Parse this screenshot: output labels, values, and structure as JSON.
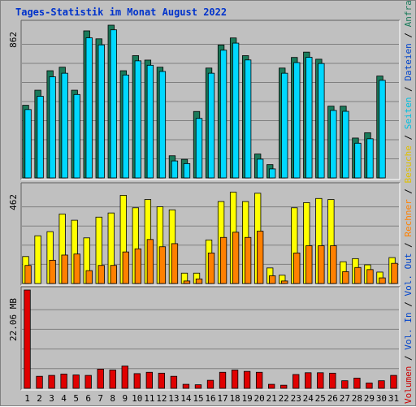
{
  "title": "Tages-Statistik im Monat August 2022",
  "chart_data": [
    {
      "type": "bar",
      "panel": "top",
      "ylabel": "862",
      "ylim": [
        0,
        862
      ],
      "categories": [
        "1",
        "2",
        "3",
        "4",
        "5",
        "6",
        "7",
        "8",
        "9",
        "10",
        "11",
        "12",
        "13",
        "14",
        "15",
        "16",
        "17",
        "18",
        "19",
        "20",
        "21",
        "22",
        "23",
        "24",
        "25",
        "26",
        "27",
        "28",
        "29",
        "30",
        "31"
      ],
      "weekend_days": [
        "6",
        "7",
        "13",
        "14",
        "20",
        "21",
        "27",
        "28"
      ],
      "series": [
        {
          "name": "Anfragen",
          "color": "#1a7a5a",
          "values": [
            410,
            495,
            605,
            625,
            495,
            830,
            785,
            862,
            605,
            690,
            665,
            625,
            125,
            105,
            375,
            620,
            750,
            790,
            690,
            135,
            75,
            620,
            680,
            710,
            670,
            405,
            405,
            225,
            255,
            575,
            0
          ]
        },
        {
          "name": "Dateien",
          "color": "#00d8ff",
          "values": [
            395,
            470,
            580,
            600,
            480,
            800,
            760,
            845,
            590,
            670,
            645,
            610,
            105,
            90,
            345,
            600,
            730,
            770,
            675,
            115,
            60,
            600,
            660,
            690,
            655,
            390,
            385,
            205,
            230,
            560,
            0
          ]
        }
      ]
    },
    {
      "type": "bar",
      "panel": "middle",
      "ylabel": "462",
      "ylim": [
        0,
        462
      ],
      "categories": [
        "1",
        "2",
        "3",
        "4",
        "5",
        "6",
        "7",
        "8",
        "9",
        "10",
        "11",
        "12",
        "13",
        "14",
        "15",
        "16",
        "17",
        "18",
        "19",
        "20",
        "21",
        "22",
        "23",
        "24",
        "25",
        "26",
        "27",
        "28",
        "29",
        "30",
        "31"
      ],
      "series": [
        {
          "name": "Seiten",
          "color": "#ffff00",
          "values": [
            130,
            230,
            250,
            335,
            305,
            220,
            320,
            340,
            425,
            365,
            405,
            370,
            355,
            50,
            50,
            210,
            395,
            440,
            395,
            435,
            75,
            40,
            365,
            390,
            410,
            405,
            105,
            120,
            90,
            55,
            125
          ]
        },
        {
          "name": "Besuche",
          "color": "#ff8000",
          "values": [
            95,
            0,
            120,
            145,
            150,
            70,
            95,
            95,
            160,
            175,
            220,
            185,
            200,
            20,
            30,
            155,
            230,
            255,
            230,
            260,
            45,
            20,
            155,
            190,
            190,
            190,
            65,
            85,
            75,
            35,
            105
          ]
        }
      ]
    },
    {
      "type": "bar",
      "panel": "bottom",
      "ylabel": "22.06 MB",
      "ylim": [
        0,
        22.06
      ],
      "categories": [
        "1",
        "2",
        "3",
        "4",
        "5",
        "6",
        "7",
        "8",
        "9",
        "10",
        "11",
        "12",
        "13",
        "14",
        "15",
        "16",
        "17",
        "18",
        "19",
        "20",
        "21",
        "22",
        "23",
        "24",
        "25",
        "26",
        "27",
        "28",
        "29",
        "30",
        "31"
      ],
      "series": [
        {
          "name": "Volumen",
          "color": "#e00000",
          "values": [
            22.06,
            2.7,
            2.9,
            3.2,
            3.0,
            2.9,
            4.3,
            4.1,
            5.0,
            3.3,
            3.6,
            3.4,
            2.7,
            0.9,
            0.8,
            1.8,
            3.6,
            4.1,
            3.8,
            3.6,
            0.9,
            0.7,
            3.1,
            3.5,
            3.5,
            3.4,
            1.7,
            2.3,
            1.2,
            1.7,
            2.9
          ]
        }
      ]
    }
  ],
  "right_labels": [
    {
      "name": "Volumen",
      "color": "#cc0000"
    },
    {
      "name": "Vol. In",
      "color": "#0044cc"
    },
    {
      "name": "Vol. Out",
      "color": "#0044cc"
    },
    {
      "name": "Rechner",
      "color": "#ff8000"
    },
    {
      "name": "Besuche",
      "color": "#e0c000"
    },
    {
      "name": "Seiten",
      "color": "#00c0e0"
    },
    {
      "name": "Dateien",
      "color": "#0044cc"
    },
    {
      "name": "Anfragen",
      "color": "#1a7a5a"
    }
  ],
  "separator": "/"
}
